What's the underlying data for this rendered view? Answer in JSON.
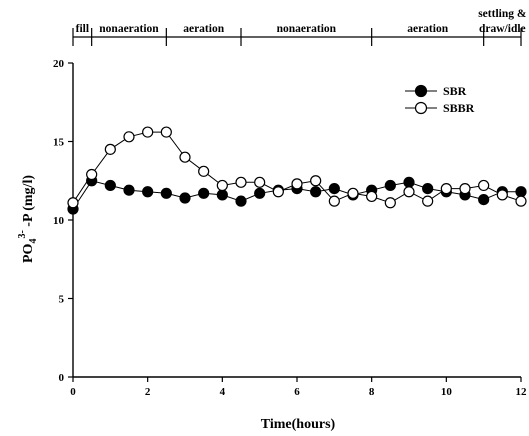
{
  "chart_data": {
    "type": "line",
    "xlabel": "Time(hours)",
    "ylabel_main": "PO",
    "ylabel_sub": "4",
    "ylabel_sup": "3-",
    "ylabel_rest": " -P (mg/l)",
    "xlim": [
      0,
      12
    ],
    "ylim": [
      0,
      20
    ],
    "xticks": [
      "0",
      "2",
      "4",
      "6",
      "8",
      "10",
      "12"
    ],
    "yticks": [
      "0",
      "5",
      "10",
      "15",
      "20"
    ],
    "grid": false,
    "legend_position": "top-right",
    "phases": [
      {
        "label": "fill",
        "start": 0,
        "end": 0.5
      },
      {
        "label": "nonaeration",
        "start": 0.5,
        "end": 2.5
      },
      {
        "label": "aeration",
        "start": 2.5,
        "end": 4.5
      },
      {
        "label": "nonaeration",
        "start": 4.5,
        "end": 8
      },
      {
        "label": "aeration",
        "start": 8,
        "end": 11
      },
      {
        "label": "settling &",
        "label2": "draw/idle",
        "start": 11,
        "end": 12
      }
    ],
    "series": [
      {
        "name": "SBR",
        "marker": "filled-circle",
        "color": "#000000",
        "x": [
          0,
          0.5,
          1,
          1.5,
          2,
          2.5,
          3,
          3.5,
          4,
          4.5,
          5,
          5.5,
          6,
          6.5,
          7,
          7.5,
          8,
          8.5,
          9,
          9.5,
          10,
          10.5,
          11,
          11.5,
          12
        ],
        "y": [
          10.7,
          12.5,
          12.2,
          11.9,
          11.8,
          11.7,
          11.4,
          11.7,
          11.6,
          11.2,
          11.7,
          11.9,
          12.0,
          11.8,
          12.0,
          11.6,
          11.9,
          12.2,
          12.4,
          12.0,
          11.8,
          11.6,
          11.3,
          11.8,
          11.8
        ]
      },
      {
        "name": "SBBR",
        "marker": "open-circle",
        "color": "#000000",
        "x": [
          0,
          0.5,
          1,
          1.5,
          2,
          2.5,
          3,
          3.5,
          4,
          4.5,
          5,
          5.5,
          6,
          6.5,
          7,
          7.5,
          8,
          8.5,
          9,
          9.5,
          10,
          10.5,
          11,
          11.5,
          12
        ],
        "y": [
          11.1,
          12.9,
          14.5,
          15.3,
          15.6,
          15.6,
          14.0,
          13.1,
          12.2,
          12.4,
          12.4,
          11.8,
          12.3,
          12.5,
          11.2,
          11.7,
          11.5,
          11.1,
          11.8,
          11.2,
          12.0,
          12.0,
          12.2,
          11.6,
          11.2
        ]
      }
    ]
  }
}
